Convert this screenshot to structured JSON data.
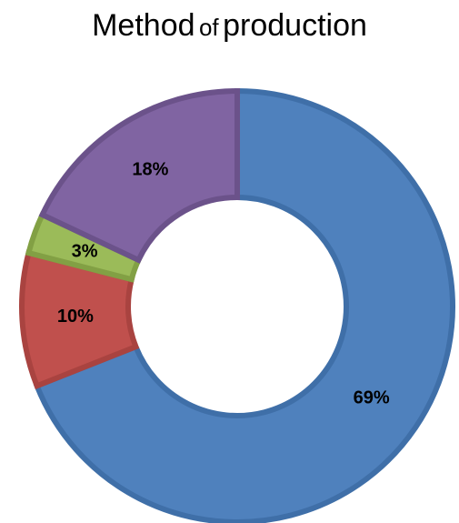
{
  "chart_data": {
    "type": "pie",
    "title": "Method of production",
    "title_parts": [
      "Method",
      "of",
      "production"
    ],
    "donut": true,
    "categories": [
      "",
      "",
      "",
      ""
    ],
    "values": [
      69,
      10,
      3,
      18
    ],
    "labels": [
      "69%",
      "10%",
      "3%",
      "18%"
    ],
    "colors": [
      "#4f81bd",
      "#c0504d",
      "#9bbb59",
      "#8064a2"
    ],
    "edge_colors": [
      "#3f6fa8",
      "#a94340",
      "#82a044",
      "#6b528a"
    ],
    "start": "12 o'clock",
    "direction": "clockwise",
    "legend": "none"
  }
}
